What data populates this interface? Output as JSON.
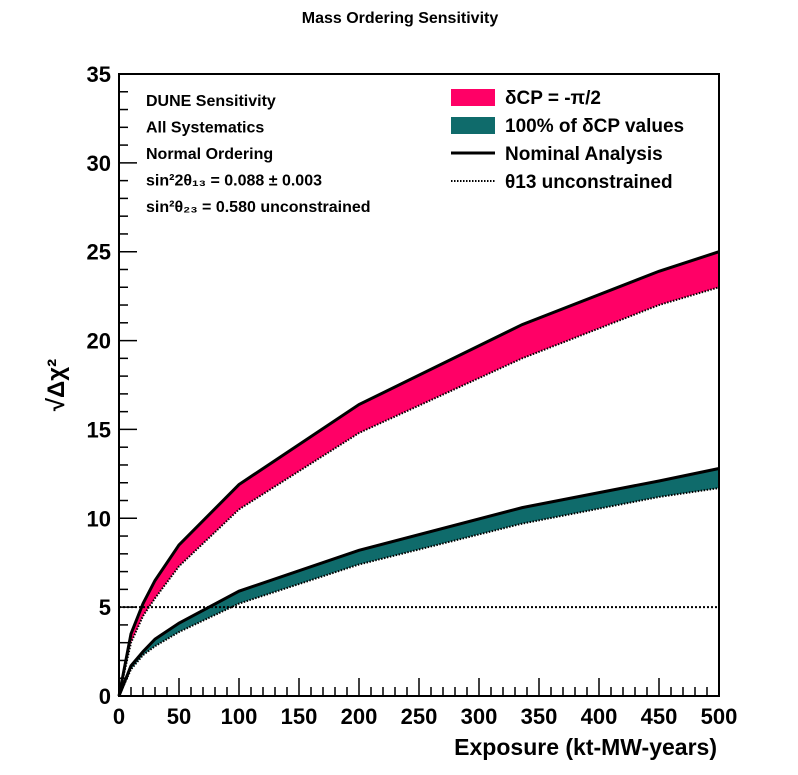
{
  "chart_data": {
    "type": "area",
    "title": "Mass Ordering Sensitivity",
    "xlabel": "Exposure (kt-MW-years)",
    "ylabel": "√Δχ²",
    "xlim": [
      0,
      500
    ],
    "ylim": [
      0,
      35
    ],
    "x_ticks": [
      0,
      50,
      100,
      150,
      200,
      250,
      300,
      350,
      400,
      450,
      500
    ],
    "y_ticks": [
      0,
      5,
      10,
      15,
      20,
      25,
      30,
      35
    ],
    "grid": false,
    "legend_position": "top-right",
    "annotation_lines": [
      "DUNE Sensitivity",
      "All Systematics",
      "Normal Ordering",
      "sin²2θ₁₃ = 0.088 ± 0.003",
      "sin²θ₂₃ = 0.580 unconstrained"
    ],
    "legend": [
      {
        "label": "δCP = -π/2",
        "style": "pink-band"
      },
      {
        "label": "100% of δCP values",
        "style": "teal-band"
      },
      {
        "label": "Nominal Analysis",
        "style": "solid-line"
      },
      {
        "label": "θ13 unconstrained",
        "style": "dotted-line"
      }
    ],
    "colors": {
      "pink": "#ff0066",
      "teal": "#0f6b6b",
      "line": "#000000"
    },
    "reference_line": {
      "y": 5,
      "style": "dotted"
    },
    "series": [
      {
        "name": "δCP = -π/2",
        "band": "pink",
        "x": [
          0,
          10,
          20,
          30,
          50,
          100,
          200,
          336,
          450,
          500
        ],
        "upper": [
          0,
          3.5,
          5.2,
          6.5,
          8.5,
          11.9,
          16.4,
          20.9,
          23.9,
          25.0
        ],
        "lower": [
          0,
          3.0,
          4.5,
          5.5,
          7.3,
          10.5,
          14.8,
          19.0,
          22.0,
          23.0
        ]
      },
      {
        "name": "100% of δCP values",
        "band": "teal",
        "x": [
          0,
          10,
          20,
          30,
          50,
          100,
          200,
          336,
          450,
          500
        ],
        "upper": [
          0,
          1.7,
          2.5,
          3.2,
          4.1,
          5.9,
          8.2,
          10.6,
          12.1,
          12.8
        ],
        "lower": [
          0,
          1.5,
          2.3,
          2.8,
          3.6,
          5.2,
          7.4,
          9.7,
          11.2,
          11.7
        ]
      }
    ]
  }
}
